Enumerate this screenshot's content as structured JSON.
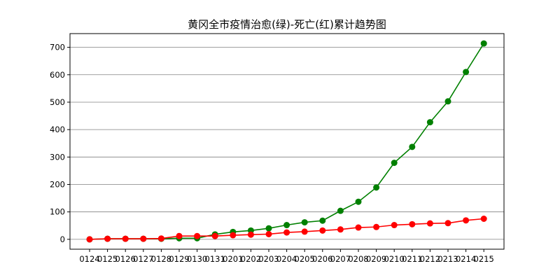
{
  "chart_data": {
    "type": "line",
    "title": "黄冈全市疫情治愈(绿)-死亡(红)累计趋势图",
    "xlabel": "",
    "ylabel": "",
    "categories": [
      "0124",
      "0125",
      "0126",
      "0127",
      "0128",
      "0129",
      "0130",
      "0131",
      "0201",
      "0202",
      "0203",
      "0204",
      "0205",
      "0206",
      "0207",
      "0208",
      "0209",
      "0210",
      "0211",
      "0212",
      "0213",
      "0214",
      "0215"
    ],
    "series": [
      {
        "color": "#008000",
        "values": [
          0,
          2,
          2,
          2,
          2,
          4,
          4,
          18,
          27,
          32,
          40,
          52,
          62,
          68,
          104,
          137,
          189,
          279,
          337,
          427,
          503,
          610,
          714
        ]
      },
      {
        "color": "#ff0000",
        "values": [
          0,
          2,
          2,
          2,
          3,
          12,
          12,
          12,
          15,
          17,
          19,
          25,
          28,
          32,
          36,
          43,
          45,
          52,
          55,
          58,
          59,
          69,
          75
        ]
      }
    ],
    "ylim": [
      -36,
      750
    ],
    "yticks": [
      0,
      100,
      200,
      300,
      400,
      500,
      600,
      700
    ],
    "grid": "horizontal",
    "legend": "none"
  }
}
